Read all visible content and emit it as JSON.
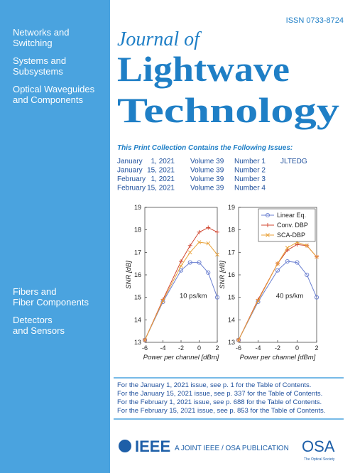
{
  "sidebar": {
    "topics_top": [
      [
        "Networks and",
        "Switching"
      ],
      [
        "Systems and",
        "Subsystems"
      ],
      [
        "Optical Waveguides",
        "and Components"
      ]
    ],
    "topics_bottom": [
      [
        "Fibers and",
        "Fiber Components"
      ],
      [
        "Detectors",
        "and Sensors"
      ]
    ]
  },
  "issn": "ISSN 0733-8724",
  "journal": {
    "line1": "Journal of",
    "line2": "Lightwave",
    "line3": "Technology"
  },
  "collection_heading": "This Print Collection Contains the Following Issues:",
  "issues": [
    [
      "January",
      "1, 2021",
      "Volume 39",
      "Number 1",
      "JLTEDG"
    ],
    [
      "January",
      "15, 2021",
      "Volume 39",
      "Number 2"
    ],
    [
      "February",
      "1, 2021",
      "Volume 39",
      "Number 3"
    ],
    [
      "February",
      "15, 2021",
      "Volume 39",
      "Number 4"
    ]
  ],
  "chart_data": [
    {
      "type": "line",
      "xlabel": "Power per channel [dBm]",
      "ylabel": "SNR [dB]",
      "annotation": "10 ps/km",
      "x": [
        -6,
        -4,
        -2,
        -1,
        0,
        1,
        2
      ],
      "xlim": [
        -6,
        2
      ],
      "xticks": [
        -6,
        -4,
        -2,
        0,
        2
      ],
      "ylim": [
        13,
        19
      ],
      "yticks": [
        13,
        14,
        15,
        16,
        17,
        18,
        19
      ],
      "series": [
        {
          "color": "#6a7fd0",
          "marker": "o",
          "values": [
            13.1,
            14.8,
            16.2,
            16.55,
            16.55,
            16.1,
            15.0
          ]
        },
        {
          "color": "#d0452f",
          "marker": "+",
          "values": [
            13.1,
            14.9,
            16.6,
            17.3,
            17.9,
            18.1,
            17.9
          ]
        },
        {
          "color": "#e8a23a",
          "marker": "x",
          "values": [
            13.1,
            14.85,
            16.4,
            17.0,
            17.45,
            17.4,
            16.9
          ]
        }
      ]
    },
    {
      "type": "line",
      "xlabel": "Power per channel [dBm]",
      "ylabel": "SNR [dB]",
      "annotation": "40 ps/km",
      "legend": "upper right",
      "x": [
        -6,
        -4,
        -2,
        -1,
        0,
        1,
        2
      ],
      "xlim": [
        -6,
        2
      ],
      "xticks": [
        -6,
        -4,
        -2,
        0,
        2
      ],
      "ylim": [
        13,
        19
      ],
      "yticks": [
        13,
        14,
        15,
        16,
        17,
        18,
        19
      ],
      "series": [
        {
          "name": "Linear Eq.",
          "color": "#6a7fd0",
          "marker": "o",
          "values": [
            13.1,
            14.8,
            16.2,
            16.6,
            16.55,
            16.0,
            15.0
          ]
        },
        {
          "name": "Conv. DBP",
          "color": "#d0452f",
          "marker": "+",
          "values": [
            13.1,
            14.9,
            16.5,
            17.1,
            17.35,
            17.3,
            16.8
          ]
        },
        {
          "name": "SCA-DBP",
          "color": "#e8a23a",
          "marker": "x",
          "values": [
            13.1,
            14.85,
            16.5,
            17.2,
            17.45,
            17.3,
            16.8
          ]
        }
      ]
    }
  ],
  "contents_notes": [
    "For the January 1, 2021 issue, see p. 1 for the Table of Contents.",
    "For the January 15, 2021 issue, see p. 337 for the Table of Contents.",
    "For the February 1, 2021 issue, see p. 688 for the Table of Contents.",
    "For the February 15, 2021 issue, see p. 853 for the Table of Contents."
  ],
  "footer": {
    "ieee": "IEEE",
    "joint": "A JOINT IEEE / OSA PUBLICATION",
    "osa": "OSA",
    "osa_sub": "The Optical Society"
  }
}
